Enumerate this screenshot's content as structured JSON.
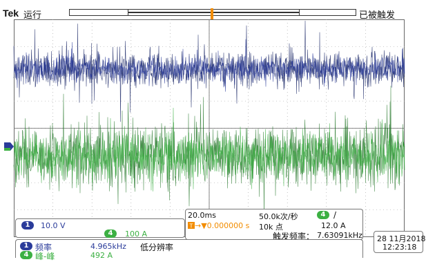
{
  "header": {
    "brand": "Tek",
    "run_state": "运行",
    "trigger_state": "已被触发"
  },
  "colors": {
    "ch1": "#2a3b9a",
    "ch1_dark": "#1a2766",
    "ch4": "#3cb043",
    "ch4_dark": "#2a7a2f",
    "trigger": "#f28c00",
    "grid": "#999999"
  },
  "channels": {
    "ch1": {
      "number": "1",
      "scale": "10.0 V"
    },
    "ch4": {
      "number": "4",
      "scale": "100 A"
    }
  },
  "timebase": {
    "scale": "20.0ms",
    "trigger_delay": "▼0.000000 s",
    "sample_rate": "50.0k次/秒",
    "record_length": "10k 点"
  },
  "trigger": {
    "source": "4",
    "slope": "/",
    "level": "12.0 A",
    "freq_label": "触发频率：",
    "freq_value": "7.63091kHz"
  },
  "datetime": {
    "date": "28 11月2018",
    "time": "12:23:18"
  },
  "measurements": [
    {
      "channel": "1",
      "label": "频率",
      "value": "4.965kHz"
    },
    {
      "channel": "4",
      "label": "峰-峰",
      "value": "492 A"
    }
  ],
  "measure_note": "低分辨率"
}
